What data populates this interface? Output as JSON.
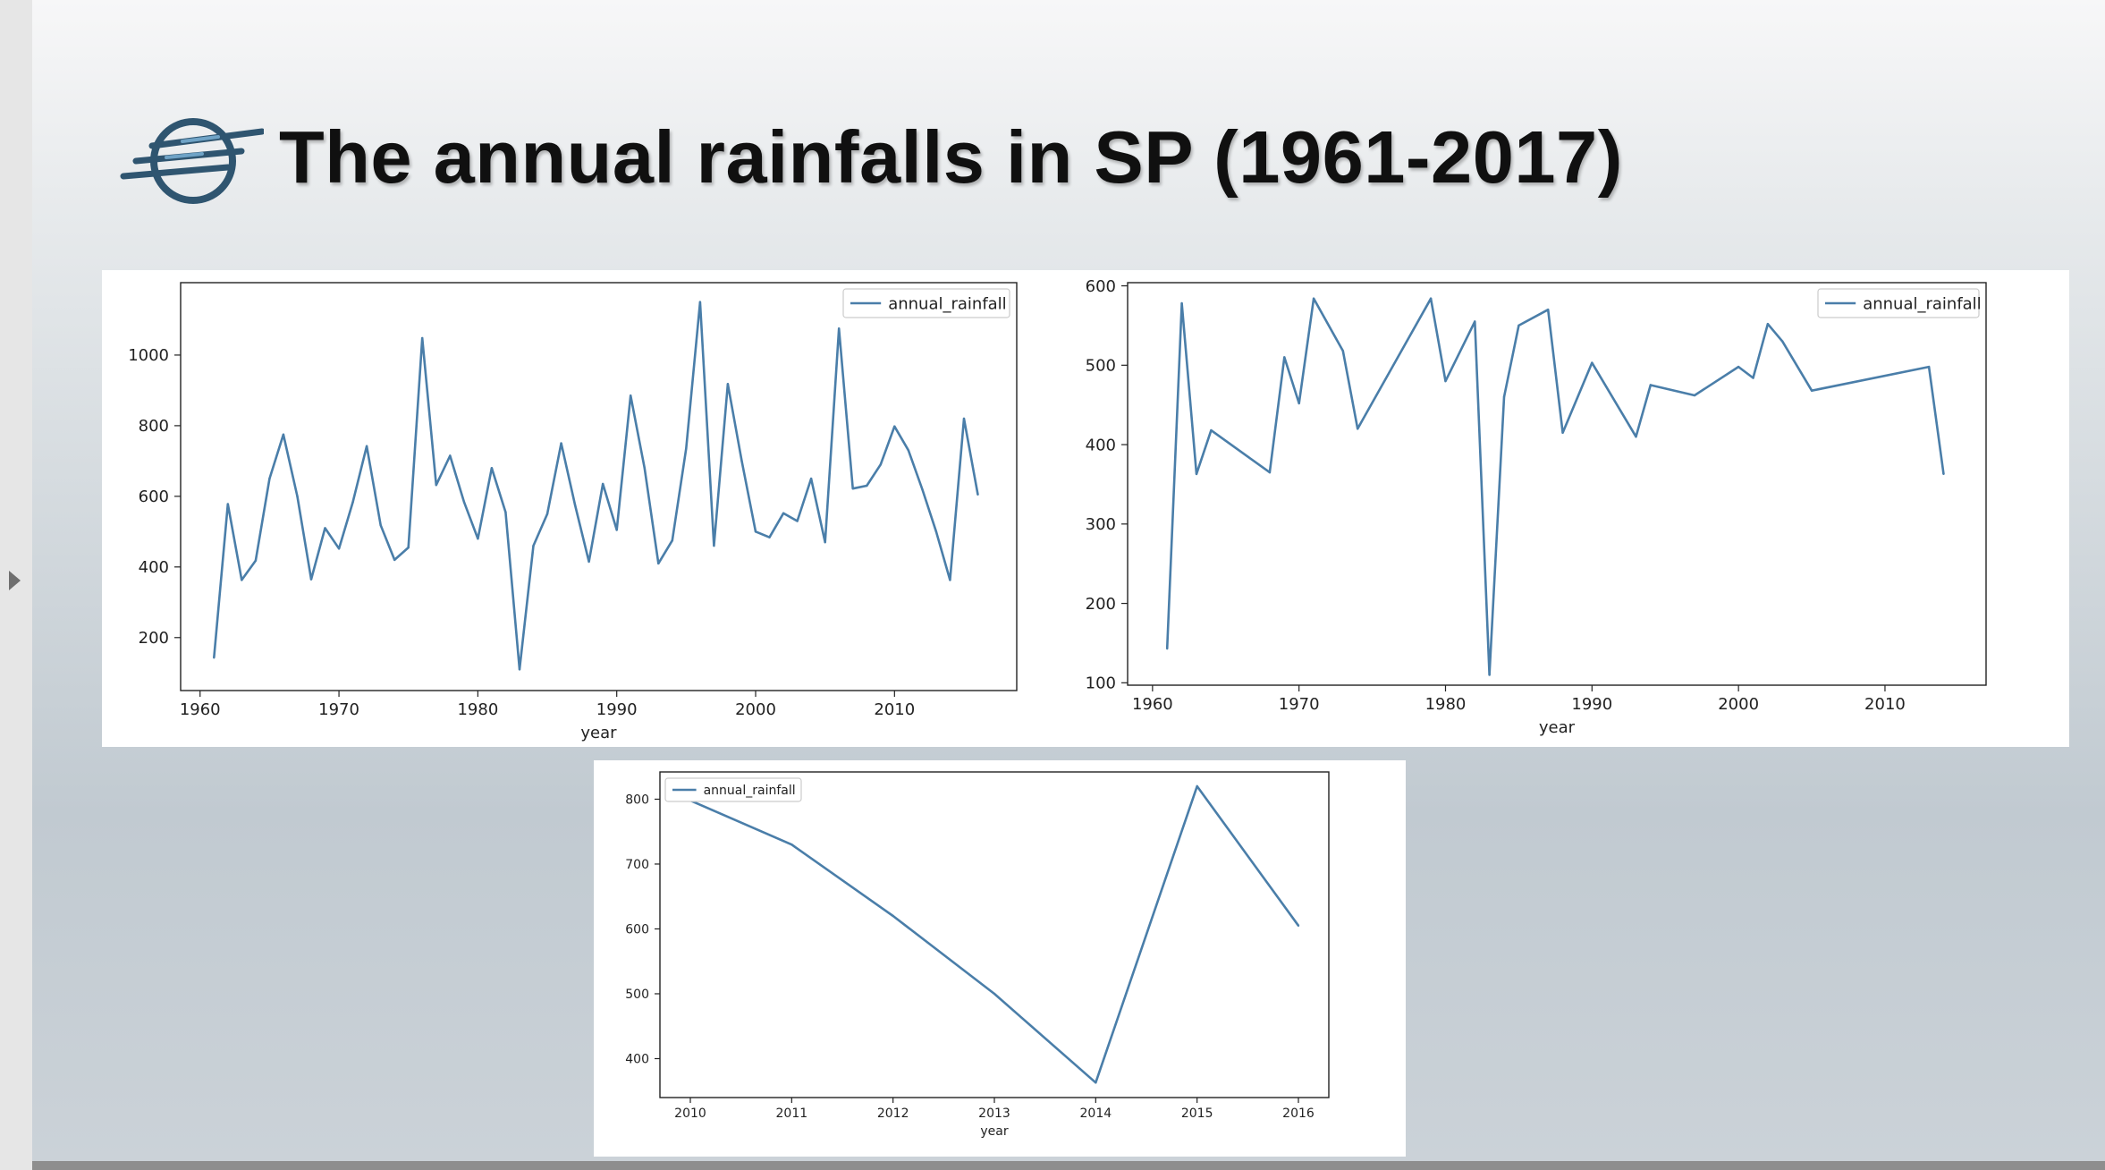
{
  "slide": {
    "title": "The annual rainfalls in SP (1961-2017)",
    "logo_icon": "circle-with-speed-lines-logo",
    "accent_color": "#2f5570"
  },
  "chart_data": [
    {
      "type": "line",
      "title": "",
      "xlabel": "year",
      "ylabel": "",
      "xlim": [
        1958.6,
        2018.8
      ],
      "ylim": [
        50,
        1205
      ],
      "xticks": [
        1960,
        1970,
        1980,
        1990,
        2000,
        2010
      ],
      "yticks": [
        200,
        400,
        600,
        800,
        1000
      ],
      "legend": "top-right",
      "grid": false,
      "series": [
        {
          "name": "annual_rainfall",
          "color": "#4a7ea9",
          "x": [
            1961,
            1962,
            1963,
            1964,
            1965,
            1966,
            1967,
            1968,
            1969,
            1970,
            1971,
            1972,
            1973,
            1974,
            1975,
            1976,
            1977,
            1978,
            1979,
            1980,
            1981,
            1982,
            1983,
            1984,
            1985,
            1986,
            1987,
            1988,
            1989,
            1990,
            1991,
            1992,
            1993,
            1994,
            1995,
            1996,
            1997,
            1998,
            1999,
            2000,
            2001,
            2002,
            2003,
            2004,
            2005,
            2006,
            2007,
            2008,
            2009,
            2010,
            2011,
            2012,
            2013,
            2014,
            2015,
            2016
          ],
          "y": [
            143,
            578,
            363,
            418,
            650,
            775,
            600,
            365,
            510,
            452,
            584,
            742,
            518,
            420,
            455,
            1048,
            632,
            715,
            585,
            480,
            680,
            555,
            110,
            460,
            550,
            750,
            575,
            415,
            635,
            505,
            885,
            680,
            410,
            475,
            735,
            1150,
            460,
            918,
            700,
            500,
            484,
            552,
            530,
            650,
            470,
            1075,
            622,
            630,
            690,
            798,
            730,
            620,
            500,
            363,
            820,
            605
          ]
        }
      ]
    },
    {
      "type": "line",
      "title": "",
      "xlabel": "year",
      "ylabel": "",
      "xlim": [
        1958.3,
        2016.9
      ],
      "ylim": [
        97,
        604
      ],
      "xticks": [
        1960,
        1970,
        1980,
        1990,
        2000,
        2010
      ],
      "yticks": [
        100,
        200,
        300,
        400,
        500,
        600
      ],
      "legend": "top-right",
      "grid": false,
      "series": [
        {
          "name": "annual_rainfall",
          "color": "#4a7ea9",
          "x": [
            1961,
            1962,
            1963,
            1964,
            1968,
            1969,
            1970,
            1971,
            1973,
            1974,
            1979,
            1980,
            1982,
            1983,
            1984,
            1985,
            1987,
            1988,
            1990,
            1993,
            1994,
            1997,
            2000,
            2001,
            2002,
            2003,
            2005,
            2013,
            2014
          ],
          "y": [
            143,
            578,
            363,
            418,
            365,
            510,
            452,
            584,
            518,
            420,
            584,
            480,
            555,
            110,
            460,
            550,
            570,
            415,
            503,
            410,
            475,
            462,
            498,
            484,
            552,
            530,
            468,
            498,
            363
          ]
        }
      ]
    },
    {
      "type": "line",
      "title": "",
      "xlabel": "year",
      "ylabel": "",
      "xlim": [
        2009.7,
        2016.3
      ],
      "ylim": [
        340,
        842
      ],
      "xticks": [
        2010,
        2011,
        2012,
        2013,
        2014,
        2015,
        2016
      ],
      "yticks": [
        400,
        500,
        600,
        700,
        800
      ],
      "legend": "top-left",
      "grid": false,
      "series": [
        {
          "name": "annual_rainfall",
          "color": "#4a7ea9",
          "x": [
            2010,
            2011,
            2012,
            2013,
            2014,
            2015,
            2016
          ],
          "y": [
            798,
            730,
            620,
            500,
            363,
            820,
            605
          ]
        }
      ]
    }
  ]
}
